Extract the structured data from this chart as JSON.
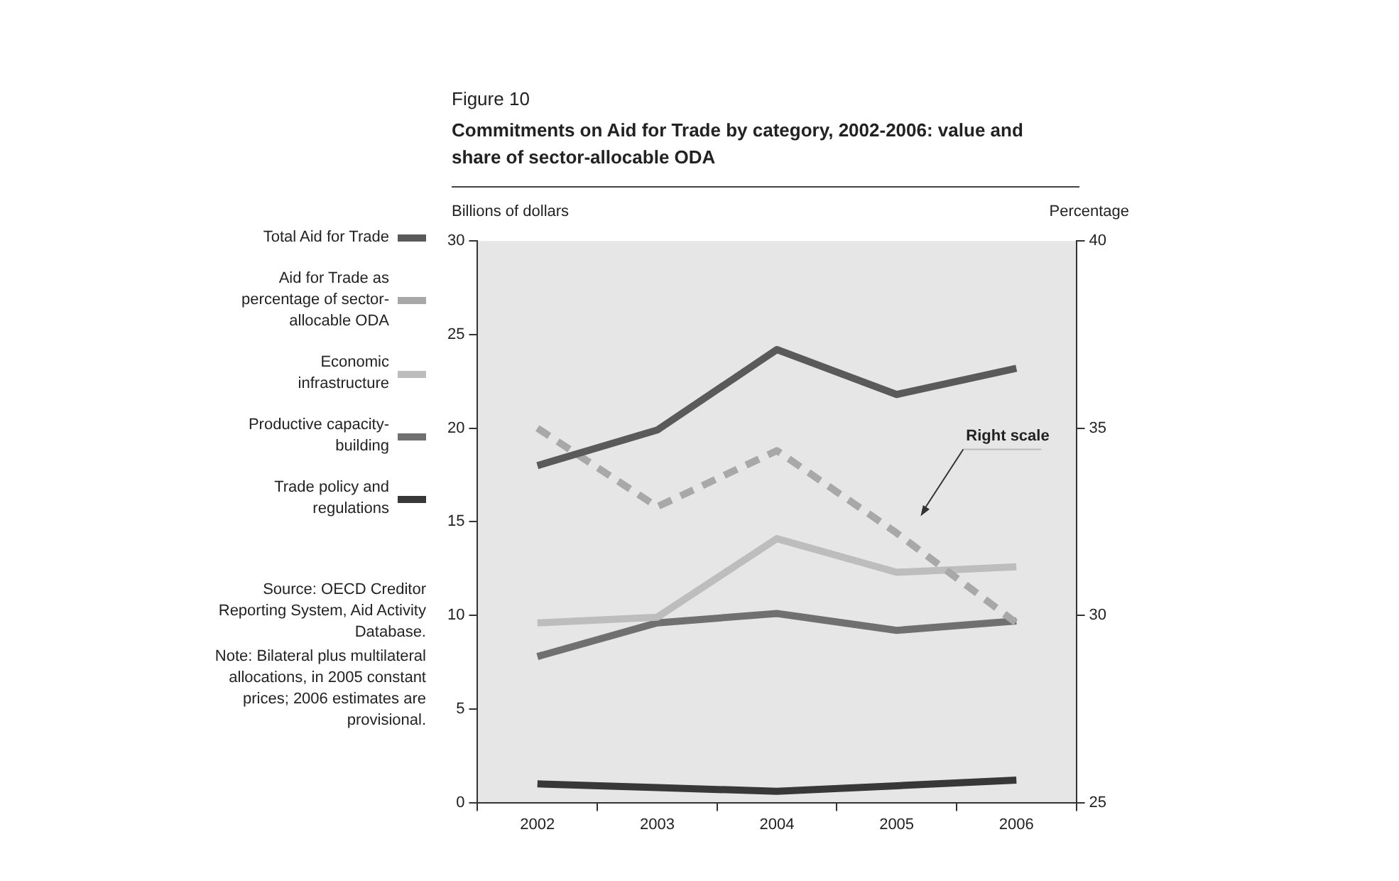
{
  "chart_data": {
    "type": "line",
    "title": "Figure 10",
    "subtitle": "Commitments on Aid for Trade by category, 2002-2006: value and share of sector-allocable ODA",
    "ylabel": "Billions of dollars",
    "y2label": "Percentage",
    "categories": [
      "2002",
      "2003",
      "2004",
      "2005",
      "2006"
    ],
    "series": [
      {
        "name": "Total Aid for Trade",
        "color": "#5a5a5a",
        "values": [
          18.0,
          19.9,
          24.2,
          21.8,
          23.2
        ]
      },
      {
        "name": "Aid for Trade as percentage of sector-allocable ODA",
        "color": "#a8a8a8",
        "values": [
          35.0,
          32.9,
          34.4,
          32.2,
          29.8
        ],
        "axis": "y2",
        "line_style": "dashed"
      },
      {
        "name": "Economic infrastructure",
        "color": "#bdbdbd",
        "values": [
          9.6,
          9.9,
          14.1,
          12.3,
          12.6
        ]
      },
      {
        "name": "Productive capacity-building",
        "color": "#707070",
        "values": [
          7.8,
          9.6,
          10.1,
          9.2,
          9.7
        ]
      },
      {
        "name": "Trade policy and regulations",
        "color": "#383838",
        "values": [
          1.0,
          0.8,
          0.6,
          0.9,
          1.2
        ]
      }
    ],
    "ylim": [
      0,
      30
    ],
    "yticks": [
      0,
      5,
      10,
      15,
      20,
      25,
      30
    ],
    "y2lim": [
      25,
      40
    ],
    "y2ticks": [
      25,
      30,
      35,
      40
    ],
    "grid": false,
    "legend": "left",
    "line_style": "solid",
    "annotations": [
      "Right scale",
      "Source: OECD Creditor Reporting System, Aid Activity Database.",
      "Note: Bilateral plus multilateral allocations, in 2005 constant prices; 2006 estimates are provisional."
    ]
  }
}
